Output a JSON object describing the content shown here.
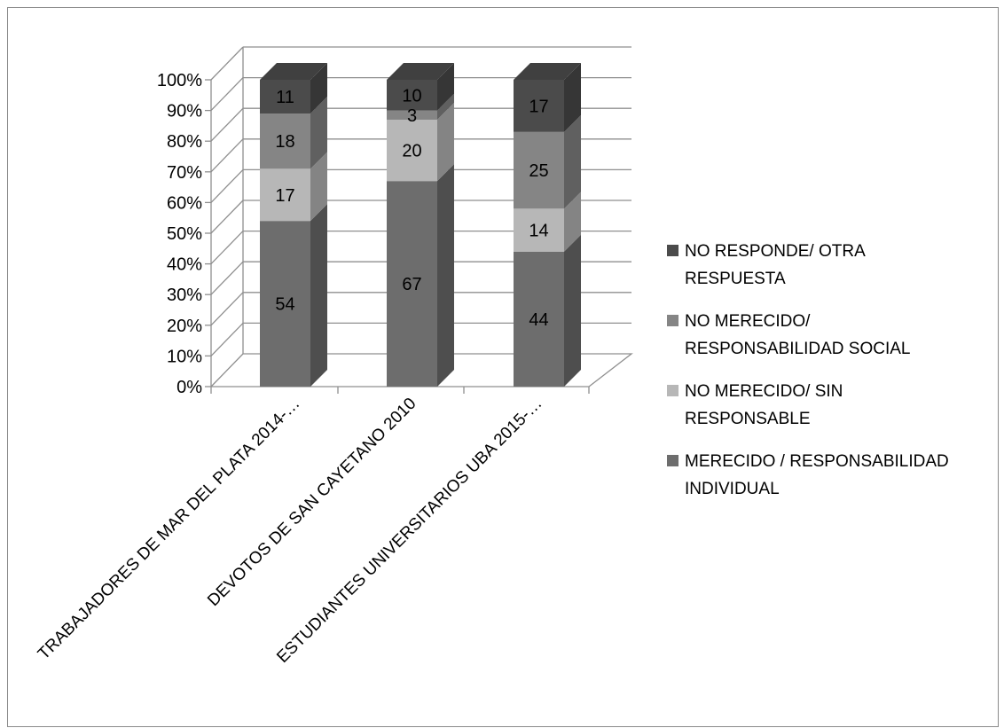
{
  "chart_data": {
    "type": "bar",
    "stacked": true,
    "percent_stacked": true,
    "three_d": true,
    "categories": [
      "TRABAJADORES DE MAR DEL PLATA  2014-…",
      "DEVOTOS DE SAN CAYETANO 2010",
      "ESTUDIANTES UNIVERSITARIOS UBA 2015-…"
    ],
    "series": [
      {
        "name": "MERECIDO / RESPONSABILIDAD\nINDIVIDUAL",
        "values": [
          54,
          67,
          44
        ],
        "color": "#6d6d6d"
      },
      {
        "name": "NO MERECIDO/ SIN\nRESPONSABLE",
        "values": [
          17,
          20,
          14
        ],
        "color": "#b7b7b7"
      },
      {
        "name": "NO MERECIDO/\nRESPONSABILIDAD SOCIAL",
        "values": [
          18,
          3,
          25
        ],
        "color": "#858585"
      },
      {
        "name": "NO RESPONDE/ OTRA\nRESPUESTA",
        "values": [
          11,
          10,
          17
        ],
        "color": "#4b4b4b"
      }
    ],
    "y_ticks": [
      "0%",
      "10%",
      "20%",
      "30%",
      "40%",
      "50%",
      "60%",
      "70%",
      "80%",
      "90%",
      "100%"
    ],
    "ylim": [
      0,
      100
    ],
    "grid": true,
    "legend_position": "right"
  }
}
